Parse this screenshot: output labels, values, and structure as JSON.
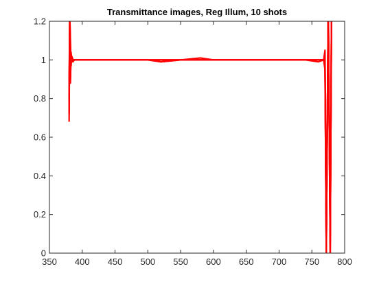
{
  "chart_data": {
    "type": "line",
    "title": "Transmittance images, Reg Illum, 10 shots",
    "xlabel": "",
    "ylabel": "",
    "xlim": [
      350,
      800
    ],
    "ylim": [
      0,
      1.2
    ],
    "xticks": [
      350,
      400,
      450,
      500,
      550,
      600,
      650,
      700,
      750,
      800
    ],
    "xtick_labels": [
      "350",
      "400",
      "450",
      "500",
      "550",
      "600",
      "650",
      "700",
      "750",
      "800"
    ],
    "yticks": [
      0,
      0.2,
      0.4,
      0.6,
      0.8,
      1,
      1.2
    ],
    "ytick_labels": [
      "0",
      "0.2",
      "0.4",
      "0.6",
      "0.8",
      "1",
      "1.2"
    ],
    "grid": false,
    "legend": "none",
    "series_color": "#ff0000",
    "x_range_data": [
      380,
      780
    ],
    "series": [
      {
        "x": [
          380,
          381,
          382,
          383,
          384,
          386,
          388,
          390,
          400,
          420,
          450,
          500,
          520,
          550,
          580,
          600,
          650,
          700,
          740,
          760,
          768,
          770,
          772,
          775,
          778,
          780
        ],
        "values": [
          0.68,
          1.25,
          1.05,
          0.99,
          1.01,
          0.99,
          1.0,
          1.0,
          1.0,
          1.0,
          1.0,
          1.0,
          0.99,
          1.0,
          1.01,
          1.0,
          1.0,
          1.0,
          1.0,
          0.99,
          1.0,
          1.05,
          0.0,
          1.3,
          0.0,
          1.3
        ]
      },
      {
        "x": [
          380,
          381,
          382,
          383,
          384,
          386,
          388,
          390,
          400,
          420,
          450,
          500,
          520,
          550,
          580,
          600,
          650,
          700,
          740,
          760,
          768,
          770,
          772,
          775,
          778,
          780
        ],
        "values": [
          0.72,
          1.3,
          0.95,
          1.02,
          0.99,
          1.0,
          1.0,
          1.0,
          1.0,
          1.0,
          1.0,
          1.0,
          1.0,
          1.0,
          1.0,
          1.0,
          1.0,
          1.0,
          1.0,
          1.0,
          1.0,
          0.95,
          0.0,
          1.3,
          0.0,
          1.3
        ]
      },
      {
        "x": [
          380,
          381,
          382,
          383,
          384,
          386,
          388,
          390,
          400,
          420,
          450,
          500,
          520,
          550,
          580,
          600,
          650,
          700,
          740,
          760,
          768,
          770,
          772,
          775,
          778,
          780
        ],
        "values": [
          0.8,
          1.2,
          0.9,
          1.03,
          1.0,
          1.0,
          1.0,
          1.0,
          1.0,
          1.0,
          1.0,
          1.0,
          0.99,
          1.0,
          1.0,
          1.0,
          1.0,
          1.0,
          1.0,
          1.0,
          1.0,
          1.02,
          0.05,
          1.25,
          0.1,
          1.2
        ]
      },
      {
        "x": [
          380,
          381,
          382,
          383,
          384,
          386,
          388,
          390,
          400,
          420,
          450,
          500,
          520,
          550,
          580,
          600,
          650,
          700,
          740,
          760,
          768,
          770,
          772,
          775,
          778,
          780
        ],
        "values": [
          0.9,
          1.22,
          1.1,
          0.97,
          1.02,
          1.0,
          1.0,
          1.0,
          1.0,
          1.0,
          1.0,
          1.0,
          1.0,
          1.0,
          1.0,
          1.0,
          1.0,
          1.0,
          1.0,
          1.0,
          1.0,
          0.98,
          0.02,
          1.28,
          0.05,
          1.3
        ]
      },
      {
        "x": [
          380,
          381,
          382,
          383,
          384,
          386,
          388,
          390,
          400,
          420,
          450,
          500,
          520,
          550,
          580,
          600,
          650,
          700,
          740,
          760,
          768,
          770,
          772,
          775,
          778,
          780
        ],
        "values": [
          0.78,
          1.28,
          0.88,
          1.04,
          0.99,
          1.0,
          1.0,
          1.0,
          1.0,
          1.0,
          1.0,
          1.0,
          1.0,
          1.0,
          1.0,
          1.0,
          1.0,
          1.0,
          1.0,
          1.0,
          1.0,
          1.0,
          0.0,
          1.3,
          0.0,
          1.3
        ]
      }
    ]
  }
}
